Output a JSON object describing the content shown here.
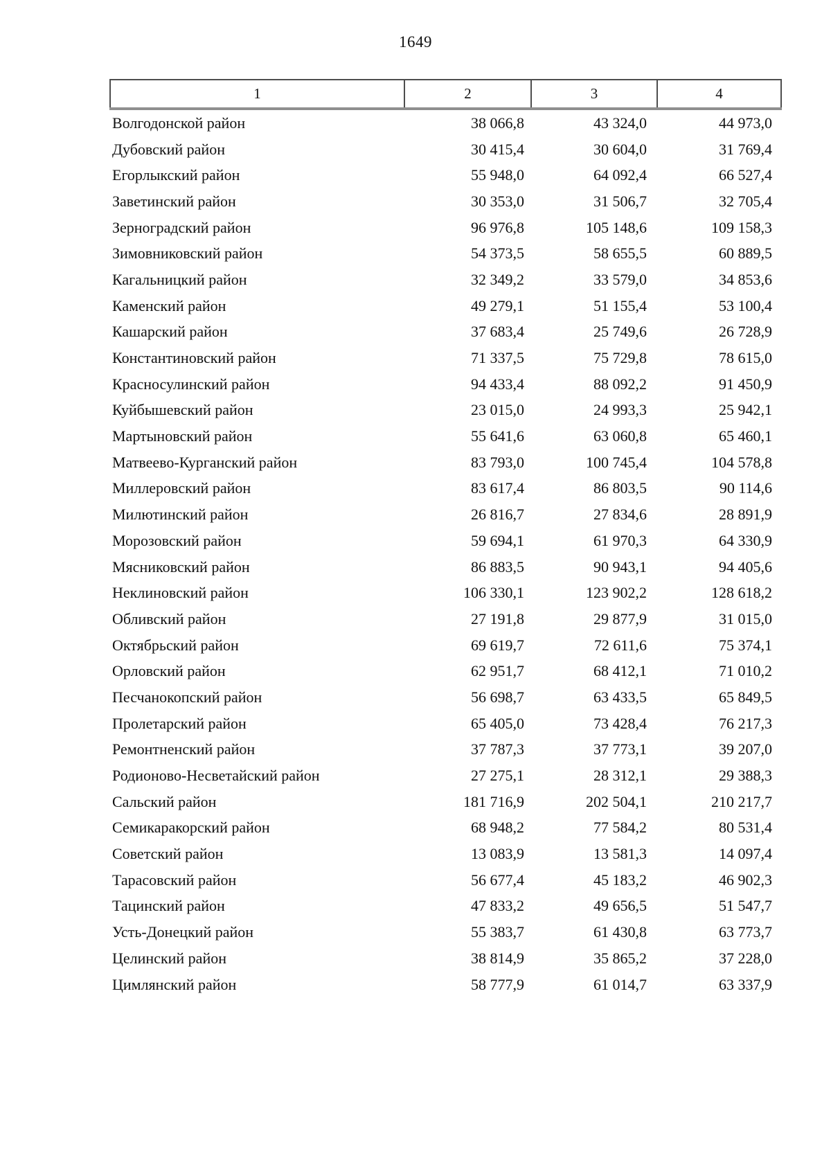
{
  "page": {
    "number": "1649"
  },
  "table": {
    "header": [
      "1",
      "2",
      "3",
      "4"
    ],
    "rows": [
      {
        "name": "Волгодонской район",
        "values": [
          "38 066,8",
          "43 324,0",
          "44 973,0"
        ]
      },
      {
        "name": "Дубовский район",
        "values": [
          "30 415,4",
          "30 604,0",
          "31 769,4"
        ]
      },
      {
        "name": "Егорлыкский район",
        "values": [
          "55 948,0",
          "64 092,4",
          "66 527,4"
        ]
      },
      {
        "name": "Заветинский район",
        "values": [
          "30 353,0",
          "31 506,7",
          "32 705,4"
        ]
      },
      {
        "name": "Зерноградский район",
        "values": [
          "96 976,8",
          "105 148,6",
          "109 158,3"
        ]
      },
      {
        "name": "Зимовниковский район",
        "values": [
          "54 373,5",
          "58 655,5",
          "60 889,5"
        ]
      },
      {
        "name": "Кагальницкий район",
        "values": [
          "32 349,2",
          "33 579,0",
          "34 853,6"
        ]
      },
      {
        "name": "Каменский район",
        "values": [
          "49 279,1",
          "51 155,4",
          "53 100,4"
        ]
      },
      {
        "name": "Кашарский район",
        "values": [
          "37 683,4",
          "25 749,6",
          "26 728,9"
        ]
      },
      {
        "name": "Константиновский район",
        "values": [
          "71 337,5",
          "75 729,8",
          "78 615,0"
        ]
      },
      {
        "name": "Красносулинский район",
        "values": [
          "94 433,4",
          "88 092,2",
          "91 450,9"
        ]
      },
      {
        "name": "Куйбышевский район",
        "values": [
          "23 015,0",
          "24 993,3",
          "25 942,1"
        ]
      },
      {
        "name": "Мартыновский район",
        "values": [
          "55 641,6",
          "63 060,8",
          "65 460,1"
        ]
      },
      {
        "name": "Матвеево-Курганский район",
        "values": [
          "83 793,0",
          "100 745,4",
          "104 578,8"
        ]
      },
      {
        "name": "Миллеровский район",
        "values": [
          "83 617,4",
          "86 803,5",
          "90 114,6"
        ]
      },
      {
        "name": "Милютинский район",
        "values": [
          "26 816,7",
          "27 834,6",
          "28 891,9"
        ]
      },
      {
        "name": "Морозовский район",
        "values": [
          "59 694,1",
          "61 970,3",
          "64 330,9"
        ]
      },
      {
        "name": "Мясниковский район",
        "values": [
          "86 883,5",
          "90 943,1",
          "94 405,6"
        ]
      },
      {
        "name": "Неклиновский район",
        "values": [
          "106 330,1",
          "123 902,2",
          "128 618,2"
        ]
      },
      {
        "name": "Обливский район",
        "values": [
          "27 191,8",
          "29 877,9",
          "31 015,0"
        ]
      },
      {
        "name": "Октябрьский район",
        "values": [
          "69 619,7",
          "72 611,6",
          "75 374,1"
        ]
      },
      {
        "name": "Орловский район",
        "values": [
          "62 951,7",
          "68 412,1",
          "71 010,2"
        ]
      },
      {
        "name": "Песчанокопский район",
        "values": [
          "56 698,7",
          "63 433,5",
          "65 849,5"
        ]
      },
      {
        "name": "Пролетарский район",
        "values": [
          "65 405,0",
          "73 428,4",
          "76 217,3"
        ]
      },
      {
        "name": "Ремонтненский район",
        "values": [
          "37 787,3",
          "37 773,1",
          "39 207,0"
        ]
      },
      {
        "name": "Родионово-Несветайский район",
        "values": [
          "27 275,1",
          "28 312,1",
          "29 388,3"
        ]
      },
      {
        "name": "Сальский район",
        "values": [
          "181 716,9",
          "202 504,1",
          "210 217,7"
        ]
      },
      {
        "name": "Семикаракорский район",
        "values": [
          "68 948,2",
          "77 584,2",
          "80 531,4"
        ]
      },
      {
        "name": "Советский район",
        "values": [
          "13 083,9",
          "13 581,3",
          "14 097,4"
        ]
      },
      {
        "name": "Тарасовский район",
        "values": [
          "56 677,4",
          "45 183,2",
          "46 902,3"
        ]
      },
      {
        "name": "Тацинский район",
        "values": [
          "47 833,2",
          "49 656,5",
          "51 547,7"
        ]
      },
      {
        "name": "Усть-Донецкий район",
        "values": [
          "55 383,7",
          "61 430,8",
          "63 773,7"
        ]
      },
      {
        "name": "Целинский район",
        "values": [
          "38 814,9",
          "35 865,2",
          "37 228,0"
        ]
      },
      {
        "name": "Цимлянский район",
        "values": [
          "58 777,9",
          "61 014,7",
          "63 337,9"
        ]
      }
    ]
  }
}
